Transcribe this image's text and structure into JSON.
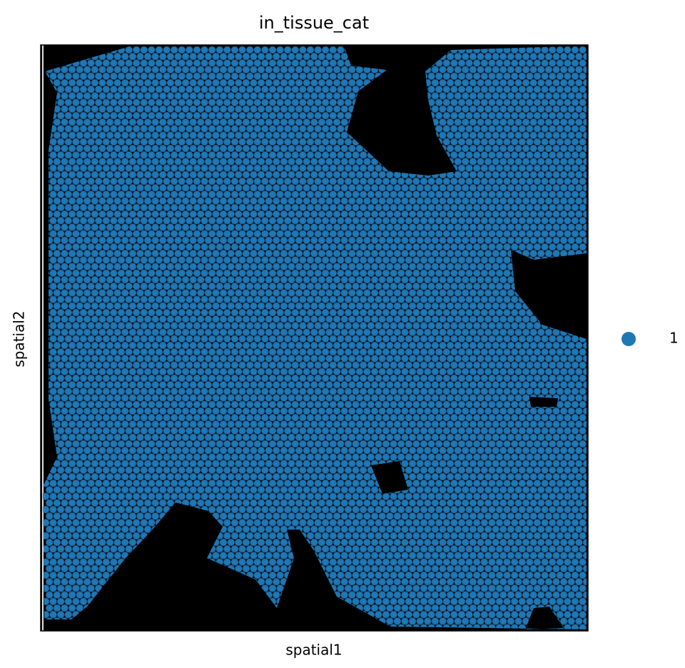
{
  "chart_data": {
    "type": "spatial-scatter",
    "title": "in_tissue_cat",
    "xlabel": "spatial1",
    "ylabel": "spatial2",
    "series": [
      {
        "name": "1",
        "color": "#1f77b4"
      }
    ],
    "legend": "right"
  }
}
